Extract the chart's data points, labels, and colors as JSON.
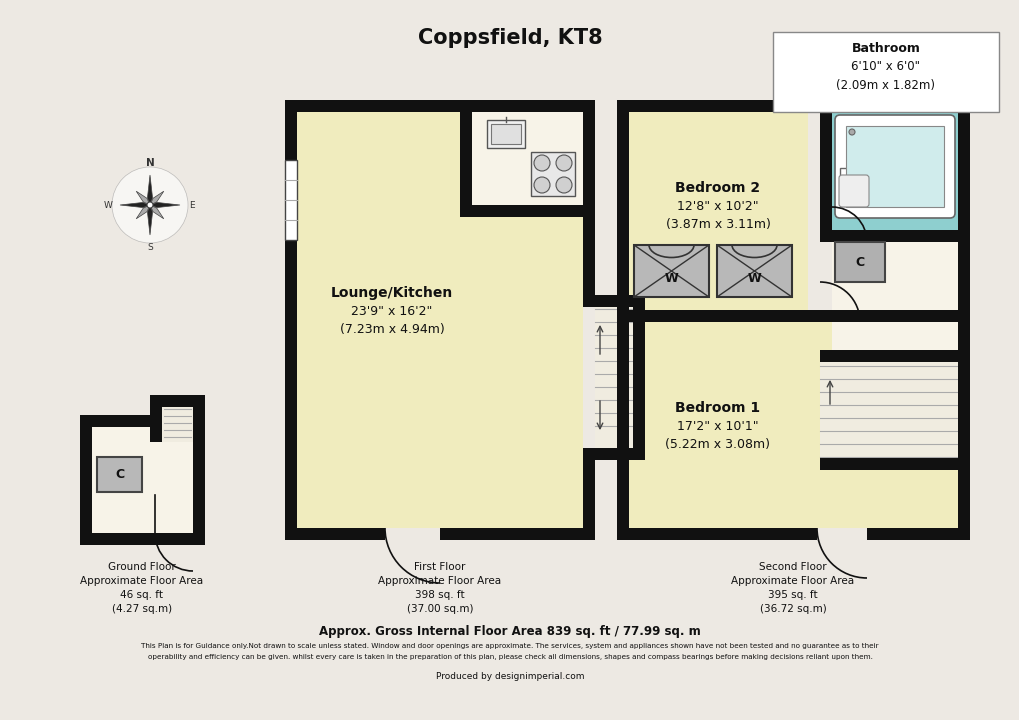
{
  "title": "Coppsfield, KT8",
  "bg_color": "#ede9e3",
  "wall_color": "#111111",
  "floor_yellow": "#f0ecbe",
  "floor_cream": "#f7f3e8",
  "floor_bathroom": "#8ecfcf",
  "floor_stairs": "#f0ece0",
  "ground_floor_label": "Ground Floor\nApproximate Floor Area\n46 sq. ft\n(4.27 sq.m)",
  "first_floor_label": "First Floor\nApproximate Floor Area\n398 sq. ft\n(37.00 sq.m)",
  "second_floor_label": "Second Floor\nApproximate Floor Area\n395 sq. ft\n(36.72 sq.m)",
  "gross_area": "Approx. Gross Internal Floor Area 839 sq. ft / 77.99 sq. m",
  "disclaimer_line1": "This Plan is for Guidance only.Not drawn to scale unless stated. Window and door openings are approximate. The services, system and appliances shown have not been tested and no guarantee as to their",
  "disclaimer_line2": "operability and efficiency can be given. whilst every care is taken in the preparation of this plan, please check all dimensions, shapes and compass bearings before making decisions reliant upon them.",
  "produced_by": "Produced by designimperial.com",
  "bathroom_label_bold": "Bathroom",
  "bathroom_label_rest": "6'10\" x 6'0\"\n(2.09m x 1.82m)",
  "bedroom2_label_bold": "Bedroom 2",
  "bedroom2_label_rest": "12'8\" x 10'2\"\n(3.87m x 3.11m)",
  "bedroom1_label_bold": "Bedroom 1",
  "bedroom1_label_rest": "17'2\" x 10'1\"\n(5.22m x 3.08m)",
  "lounge_label_bold": "Lounge/Kitchen",
  "lounge_label_rest": "23'9\" x 16'2\"\n(7.23m x 4.94m)"
}
